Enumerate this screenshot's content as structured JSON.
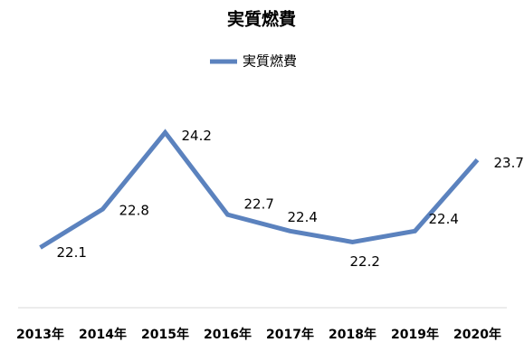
{
  "chart_data": {
    "type": "line",
    "title": "実質燃費",
    "categories": [
      "2013年",
      "2014年",
      "2015年",
      "2016年",
      "2017年",
      "2018年",
      "2019年",
      "2020年"
    ],
    "series": [
      {
        "name": "実質燃費",
        "color": "#5b82be",
        "values": [
          22.1,
          22.8,
          24.2,
          22.7,
          22.4,
          22.2,
          22.4,
          23.7
        ]
      }
    ],
    "ylim": [
      21,
      25
    ],
    "legend": "top"
  }
}
